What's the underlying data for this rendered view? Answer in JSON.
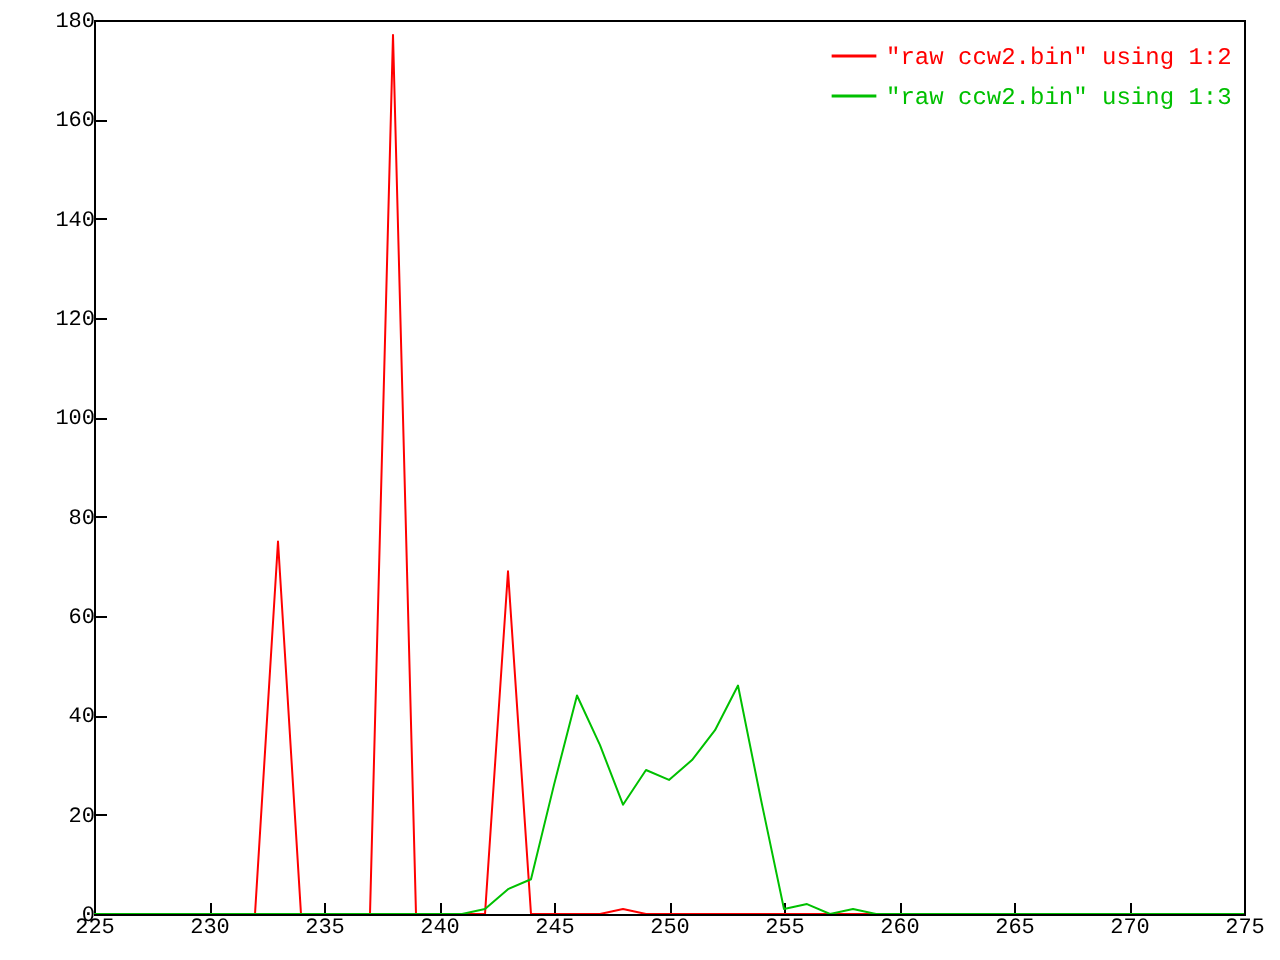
{
  "chart_data": {
    "type": "line",
    "x": [
      225,
      226,
      227,
      228,
      229,
      230,
      231,
      232,
      233,
      234,
      235,
      236,
      237,
      238,
      239,
      240,
      241,
      242,
      243,
      244,
      245,
      246,
      247,
      248,
      249,
      250,
      251,
      252,
      253,
      254,
      255,
      256,
      257,
      258,
      259,
      260,
      261,
      262,
      263,
      264,
      265,
      266,
      267,
      268,
      269,
      270,
      271,
      272,
      273,
      274,
      275
    ],
    "series": [
      {
        "name": "\"raw ccw2.bin\" using 1:2",
        "color": "#ff0000",
        "values": [
          null,
          null,
          null,
          null,
          null,
          null,
          null,
          0,
          75,
          0,
          null,
          null,
          0,
          177,
          0,
          null,
          0,
          0,
          69,
          0,
          0,
          0,
          0,
          1,
          0,
          0,
          0,
          0,
          0,
          0,
          0,
          0,
          0,
          0,
          0,
          null,
          null,
          null,
          null,
          null,
          null,
          null,
          null,
          null,
          null,
          null,
          null,
          null,
          null,
          null,
          null
        ]
      },
      {
        "name": "\"raw ccw2.bin\" using 1:3",
        "color": "#00c000",
        "values": [
          0,
          0,
          0,
          0,
          0,
          0,
          0,
          0,
          0,
          0,
          0,
          0,
          0,
          0,
          0,
          0,
          0,
          1,
          5,
          7,
          26,
          44,
          34,
          22,
          29,
          27,
          31,
          37,
          46,
          23,
          1,
          2,
          0,
          1,
          0,
          0,
          0,
          0,
          0,
          0,
          0,
          0,
          0,
          0,
          0,
          0,
          0,
          0,
          0,
          0,
          0
        ]
      }
    ],
    "xlim": [
      225,
      275
    ],
    "xticks": [
      225,
      230,
      235,
      240,
      245,
      250,
      255,
      260,
      265,
      270,
      275
    ],
    "ylim": [
      0,
      180
    ],
    "yticks": [
      0,
      20,
      40,
      60,
      80,
      100,
      120,
      140,
      160,
      180
    ],
    "legend": "top right",
    "grid": false
  }
}
